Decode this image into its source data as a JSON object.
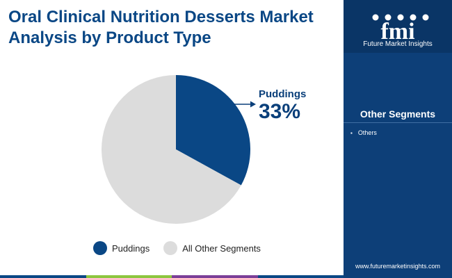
{
  "header": {
    "title": "Oral Clinical Nutrition Desserts Market Analysis by Product Type"
  },
  "chart_data": {
    "type": "pie",
    "slices": [
      {
        "label": "Puddings",
        "value": 33,
        "color": "#0a4785"
      },
      {
        "label": "All Other Segments",
        "value": 67,
        "color": "#dcdcdc"
      }
    ],
    "callout": {
      "label": "Puddings",
      "value_text": "33%"
    },
    "legend": {
      "placement": "bottom",
      "entries": [
        "Puddings",
        "All Other Segments"
      ]
    }
  },
  "side_panel": {
    "logo_text": "Future Market Insights",
    "heading": "Other Segments",
    "items": [
      "Others"
    ],
    "url": "www.futuremarketinsights.com",
    "background": "#0d3f78"
  },
  "bottom_bar_colors": [
    "#0a4785",
    "#8cc63f",
    "#7b3f98",
    "#0a4785"
  ]
}
